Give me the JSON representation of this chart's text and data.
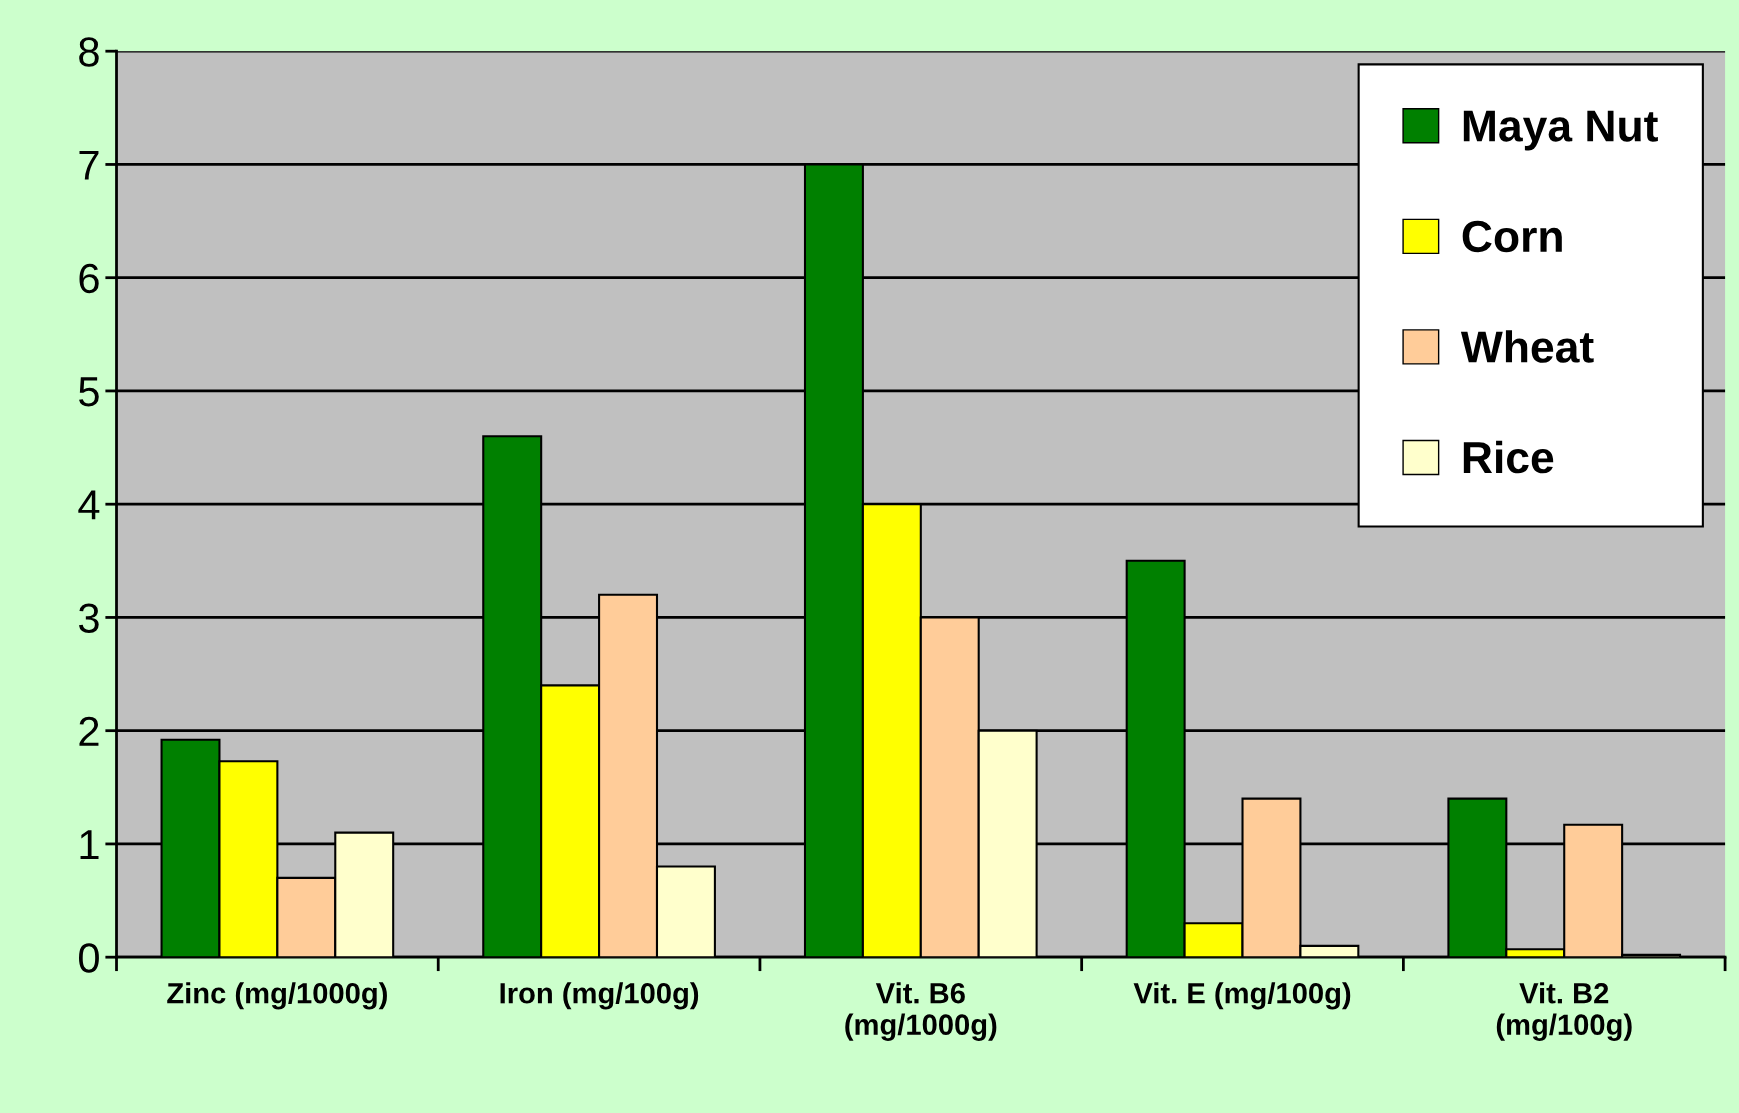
{
  "chart_data": {
    "type": "bar",
    "categories": [
      "Zinc (mg/1000g)",
      "Iron (mg/100g)",
      "Vit. B6\n(mg/1000g)",
      "Vit. E (mg/100g)",
      "Vit. B2\n(mg/100g)"
    ],
    "series": [
      {
        "name": "Maya Nut",
        "color": "#008000",
        "values": [
          1.92,
          4.6,
          7,
          3.5,
          1.4
        ]
      },
      {
        "name": "Corn",
        "color": "#ffff00",
        "values": [
          1.73,
          2.4,
          4,
          0.3,
          0.07
        ]
      },
      {
        "name": "Wheat",
        "color": "#ffcc99",
        "values": [
          0.7,
          3.2,
          3,
          1.4,
          1.17
        ]
      },
      {
        "name": "Rice",
        "color": "#ffffcc",
        "values": [
          1.1,
          0.8,
          2,
          0.1,
          0.02
        ]
      }
    ],
    "ylim": [
      0,
      8
    ],
    "yticks": [
      0,
      1,
      2,
      3,
      4,
      5,
      6,
      7,
      8
    ],
    "grid": "y",
    "legend": "top right"
  }
}
